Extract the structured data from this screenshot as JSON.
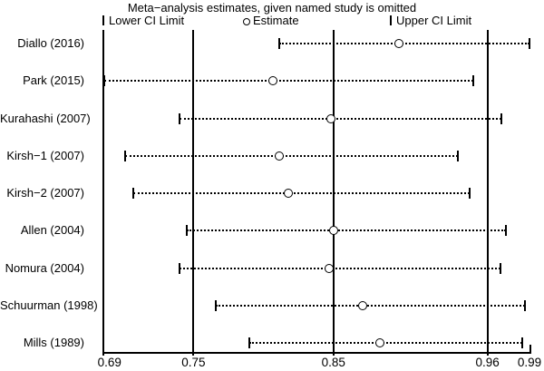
{
  "title": "Meta−analysis estimates, given named study is omitted",
  "legend": {
    "lower_label": "Lower CI Limit",
    "estimate_label": "Estimate",
    "upper_label": "Upper CI Limit"
  },
  "colors": {
    "foreground": "#000000",
    "background": "#ffffff"
  },
  "chart_data": {
    "type": "scatter",
    "subtype": "forest-leave-one-out-sensitivity",
    "title": "Meta−analysis estimates, given named study is omitted",
    "legend_entries": [
      "Lower CI Limit",
      "Estimate",
      "Upper CI Limit"
    ],
    "legend_position": "top",
    "grid": false,
    "xlim": [
      0.685,
      0.99
    ],
    "xticks": [
      0.69,
      0.75,
      0.85,
      0.96,
      0.99
    ],
    "ref_lines": [
      0.75,
      0.85,
      0.96
    ],
    "studies": [
      {
        "label": "Diallo (2016)",
        "lower": 0.811,
        "estimate": 0.897,
        "upper": 0.99
      },
      {
        "label": "Park (2015)",
        "lower": 0.686,
        "estimate": 0.807,
        "upper": 0.95
      },
      {
        "label": "Kurahashi (2007)",
        "lower": 0.74,
        "estimate": 0.848,
        "upper": 0.97
      },
      {
        "label": "Kirsh−1 (2007)",
        "lower": 0.701,
        "estimate": 0.811,
        "upper": 0.939
      },
      {
        "label": "Kirsh−2 (2007)",
        "lower": 0.707,
        "estimate": 0.818,
        "upper": 0.947
      },
      {
        "label": "Allen (2004)",
        "lower": 0.745,
        "estimate": 0.85,
        "upper": 0.973
      },
      {
        "label": "Nomura (2004)",
        "lower": 0.74,
        "estimate": 0.847,
        "upper": 0.969
      },
      {
        "label": "Schuurman (1998)",
        "lower": 0.766,
        "estimate": 0.871,
        "upper": 0.987
      },
      {
        "label": "Mills (1989)",
        "lower": 0.79,
        "estimate": 0.883,
        "upper": 0.985
      }
    ]
  }
}
